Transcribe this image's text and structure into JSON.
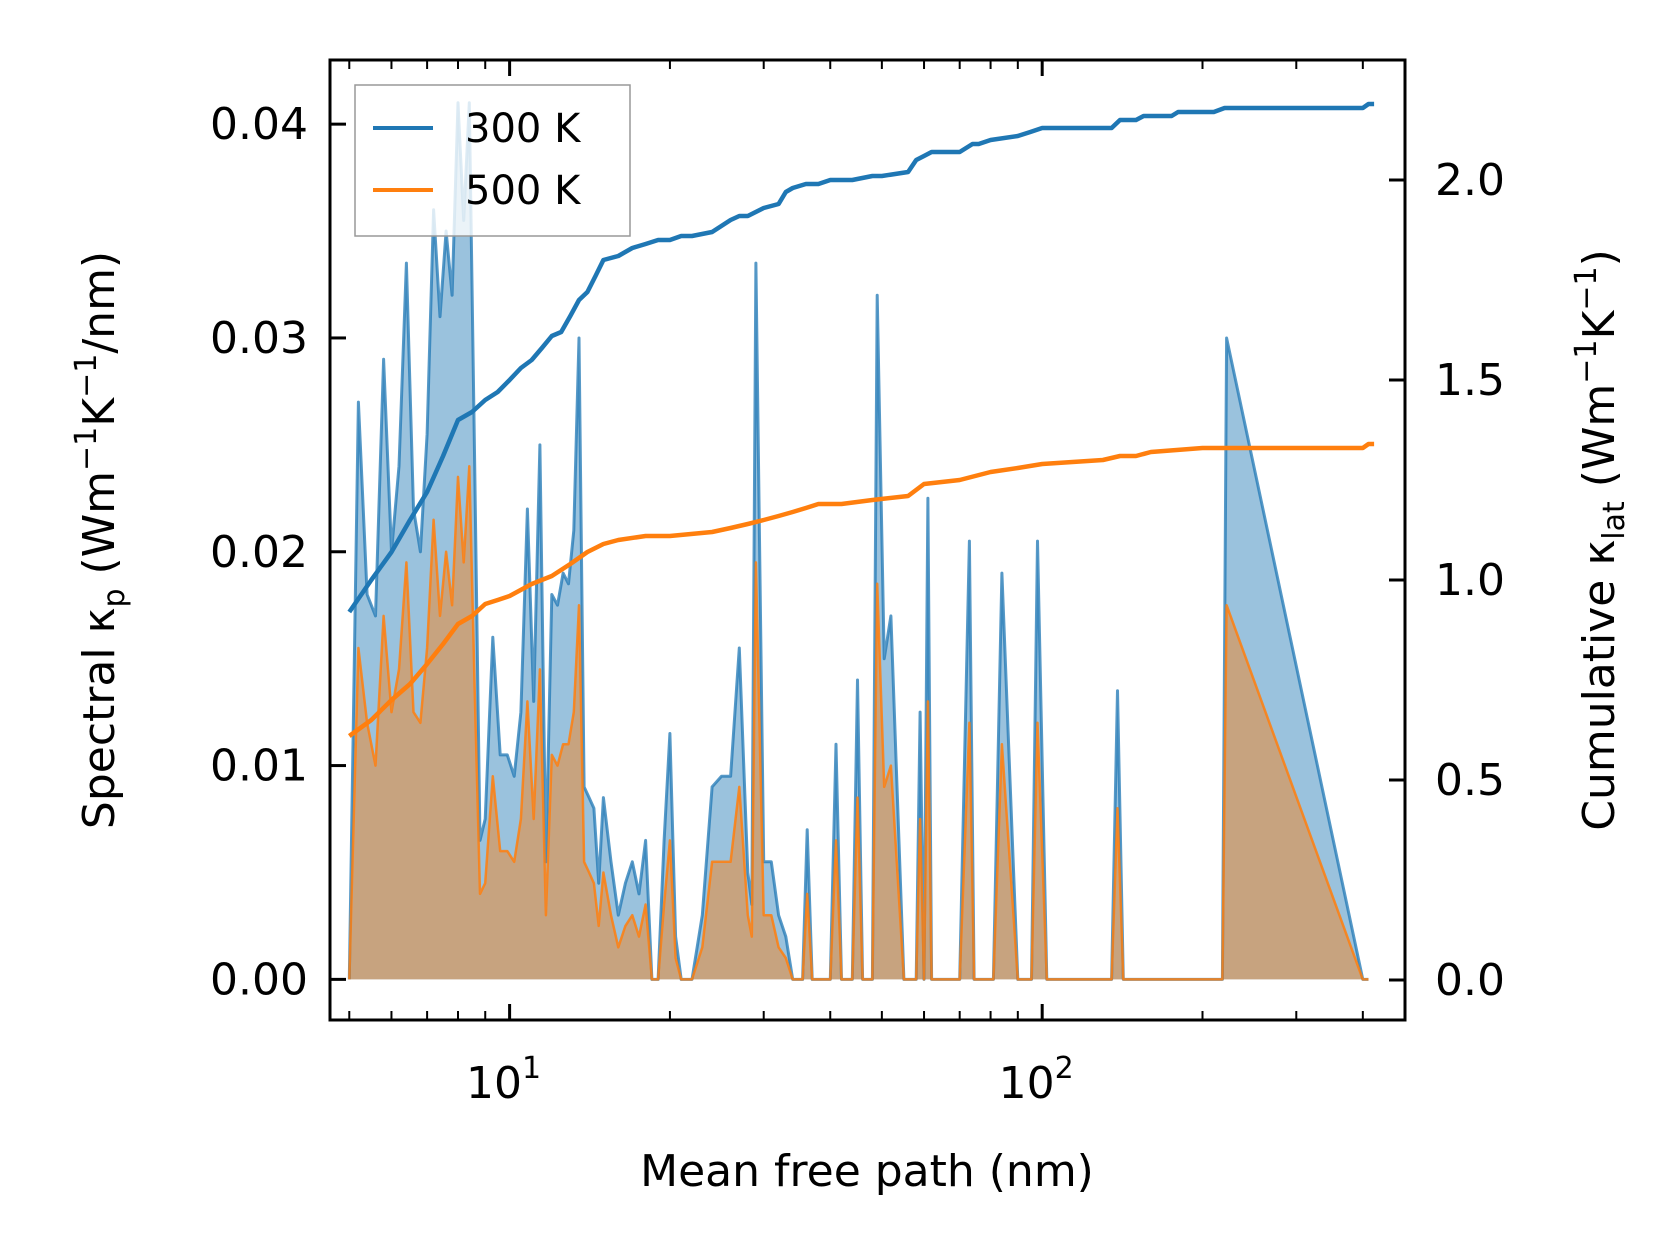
{
  "chart_data": {
    "type": "line",
    "xscale": "log",
    "xlabel": "Mean free path (nm)",
    "ylabel_left": {
      "main": "Spectral κ",
      "sub": "p",
      "units": "Wm",
      "exp1": "−1",
      "k": "K",
      "exp2": "−1",
      "tail": "/nm)"
    },
    "ylabel_right": {
      "main": "Cumulative κ",
      "sub": "lat",
      "units": "Wm",
      "exp1": "−1",
      "k": "K",
      "exp2": "−1",
      "tail": ")"
    },
    "xlim": [
      4.6,
      480
    ],
    "ylim_left": [
      -0.0019,
      0.043
    ],
    "ylim_right": [
      -0.1,
      2.3
    ],
    "xticks": [
      {
        "value": 10,
        "base": "10",
        "exp": "1"
      },
      {
        "value": 100,
        "base": "10",
        "exp": "2"
      }
    ],
    "yticks_left": [
      {
        "value": 0.0,
        "label": "0.00"
      },
      {
        "value": 0.01,
        "label": "0.01"
      },
      {
        "value": 0.02,
        "label": "0.02"
      },
      {
        "value": 0.03,
        "label": "0.03"
      },
      {
        "value": 0.04,
        "label": "0.04"
      }
    ],
    "yticks_right": [
      {
        "value": 0.0,
        "label": "0.0"
      },
      {
        "value": 0.5,
        "label": "0.5"
      },
      {
        "value": 1.0,
        "label": "1.0"
      },
      {
        "value": 1.5,
        "label": "1.5"
      },
      {
        "value": 2.0,
        "label": "2.0"
      }
    ],
    "legend": {
      "position": "upper-left",
      "entries": [
        {
          "label": "300 K",
          "color": "#1f77b4"
        },
        {
          "label": "500 K",
          "color": "#ff7f0e"
        }
      ]
    },
    "colors": {
      "s300": "#1f77b4",
      "s500": "#ff7f0e",
      "fill300": "#1f77b4",
      "fill500": "#ff7f0e"
    },
    "spectral": {
      "x": [
        5.0,
        5.2,
        5.4,
        5.6,
        5.8,
        6.0,
        6.2,
        6.4,
        6.6,
        6.8,
        7.0,
        7.2,
        7.4,
        7.6,
        7.8,
        8.0,
        8.2,
        8.4,
        8.6,
        8.8,
        9.0,
        9.3,
        9.6,
        9.9,
        10.2,
        10.5,
        10.8,
        11.1,
        11.4,
        11.7,
        12.0,
        12.3,
        12.6,
        12.9,
        13.2,
        13.5,
        13.8,
        14.1,
        14.4,
        14.7,
        15.0,
        15.5,
        16.0,
        16.5,
        17.0,
        17.5,
        18.0,
        18.5,
        19.0,
        19.5,
        20.0,
        20.5,
        21.0,
        21.5,
        22.0,
        23.0,
        24.0,
        25.0,
        26.0,
        27.0,
        28.0,
        28.5,
        29.0,
        30.0,
        31.0,
        32.0,
        33.0,
        34.0,
        34.8,
        35.5,
        36.2,
        37.0,
        38.0,
        39.0,
        40.0,
        41.0,
        42.0,
        43.0,
        44.0,
        45.0,
        46.0,
        47.0,
        48.0,
        49.0,
        50.5,
        52.0,
        55.0,
        57.0,
        58.0,
        59.0,
        60.0,
        61.0,
        62.0,
        64.0,
        70.0,
        73.0,
        74.5,
        76.0,
        78.0,
        79.5,
        81.0,
        84.0,
        90.0,
        93.0,
        95.5,
        98.0,
        102.0,
        130.0,
        135.0,
        138.5,
        142.0,
        145.0,
        150.0,
        153.0,
        155.5,
        158.0,
        165.0,
        175.0,
        180.0,
        184.0,
        200.0,
        213.0,
        218.0,
        222.0,
        400.0,
        410.0,
        415.0,
        420.0
      ],
      "v300": [
        0.0,
        0.027,
        0.018,
        0.017,
        0.029,
        0.02,
        0.024,
        0.0335,
        0.022,
        0.02,
        0.0255,
        0.036,
        0.031,
        0.035,
        0.032,
        0.041,
        0.0355,
        0.041,
        0.024,
        0.0065,
        0.0075,
        0.016,
        0.0105,
        0.0105,
        0.0095,
        0.0125,
        0.022,
        0.013,
        0.025,
        0.0055,
        0.018,
        0.0175,
        0.019,
        0.0185,
        0.021,
        0.03,
        0.009,
        0.0085,
        0.008,
        0.0045,
        0.0085,
        0.0055,
        0.003,
        0.0045,
        0.0055,
        0.004,
        0.0065,
        0.0,
        0.0,
        0.0065,
        0.0115,
        0.002,
        0.0,
        0.0,
        0.0,
        0.003,
        0.009,
        0.0095,
        0.0095,
        0.0155,
        0.005,
        0.0035,
        0.0335,
        0.0055,
        0.0055,
        0.003,
        0.002,
        0.0,
        0.0,
        0.0,
        0.007,
        0.0,
        0.0,
        0.0,
        0.0,
        0.011,
        0.0,
        0.0,
        0.0,
        0.014,
        0.0,
        0.0,
        0.0,
        0.032,
        0.015,
        0.017,
        0.0,
        0.0,
        0.0,
        0.0125,
        0.0,
        0.0225,
        0.0,
        0.0,
        0.0,
        0.0205,
        0.0,
        0.0,
        0.0,
        0.0,
        0.0,
        0.019,
        0.0,
        0.0,
        0.0,
        0.0205,
        0.0,
        0.0,
        0.0,
        0.0135,
        0.0,
        0.0,
        0.0,
        0.0,
        0.0,
        0.0,
        0.0,
        0.0,
        0.0,
        0.0,
        0.0,
        0.0,
        0.0,
        0.03,
        0.0,
        0.0
      ],
      "v500": [
        0.0,
        0.0155,
        0.012,
        0.01,
        0.017,
        0.0125,
        0.0145,
        0.0195,
        0.0125,
        0.012,
        0.0155,
        0.0215,
        0.017,
        0.02,
        0.0175,
        0.0235,
        0.0195,
        0.024,
        0.0135,
        0.004,
        0.0045,
        0.0095,
        0.006,
        0.006,
        0.0055,
        0.0075,
        0.013,
        0.0075,
        0.0145,
        0.003,
        0.0105,
        0.01,
        0.011,
        0.011,
        0.0125,
        0.0175,
        0.0055,
        0.005,
        0.0045,
        0.0025,
        0.005,
        0.003,
        0.0015,
        0.0025,
        0.003,
        0.002,
        0.0035,
        0.0,
        0.0,
        0.0035,
        0.0065,
        0.001,
        0.0,
        0.0,
        0.0,
        0.0015,
        0.0055,
        0.0055,
        0.0055,
        0.009,
        0.003,
        0.002,
        0.0195,
        0.003,
        0.003,
        0.0015,
        0.001,
        0.0,
        0.0,
        0.0,
        0.004,
        0.0,
        0.0,
        0.0,
        0.0,
        0.0065,
        0.0,
        0.0,
        0.0,
        0.0085,
        0.0,
        0.0,
        0.0,
        0.0185,
        0.009,
        0.01,
        0.0,
        0.0,
        0.0,
        0.0075,
        0.0,
        0.013,
        0.0,
        0.0,
        0.0,
        0.012,
        0.0,
        0.0,
        0.0,
        0.0,
        0.0,
        0.011,
        0.0,
        0.0,
        0.0,
        0.012,
        0.0,
        0.0,
        0.0,
        0.008,
        0.0,
        0.0,
        0.0,
        0.0,
        0.0,
        0.0,
        0.0,
        0.0,
        0.0,
        0.0,
        0.0,
        0.0,
        0.0,
        0.0175,
        0.0,
        0.0
      ]
    },
    "cumulative": {
      "x300": [
        5.0,
        5.5,
        6.0,
        6.5,
        7.0,
        7.5,
        8.0,
        8.5,
        9.0,
        9.5,
        10.0,
        10.5,
        11.0,
        11.5,
        12.0,
        12.5,
        13.0,
        13.5,
        14.0,
        14.5,
        15.0,
        16.0,
        17.0,
        18.0,
        19.0,
        20.0,
        21.0,
        22.0,
        24.0,
        26.0,
        27.0,
        28.0,
        30.0,
        32.0,
        33.0,
        34.0,
        36.0,
        38.0,
        40.0,
        44.0,
        48.0,
        50.0,
        56.0,
        58.0,
        60.0,
        62.0,
        70.0,
        74.0,
        76.0,
        80.0,
        90.0,
        95.0,
        100.0,
        120.0,
        135.0,
        140.0,
        150.0,
        155.0,
        175.0,
        180.0,
        210.0,
        220.0,
        400.0,
        410.0,
        420.0
      ],
      "y300": [
        0.92,
        1.0,
        1.07,
        1.15,
        1.22,
        1.31,
        1.4,
        1.42,
        1.45,
        1.47,
        1.5,
        1.53,
        1.55,
        1.58,
        1.61,
        1.62,
        1.66,
        1.7,
        1.72,
        1.76,
        1.8,
        1.81,
        1.83,
        1.84,
        1.85,
        1.85,
        1.86,
        1.86,
        1.87,
        1.9,
        1.91,
        1.91,
        1.93,
        1.94,
        1.97,
        1.98,
        1.99,
        1.99,
        2.0,
        2.0,
        2.01,
        2.01,
        2.02,
        2.05,
        2.06,
        2.07,
        2.07,
        2.09,
        2.09,
        2.1,
        2.11,
        2.12,
        2.13,
        2.13,
        2.13,
        2.15,
        2.15,
        2.16,
        2.16,
        2.17,
        2.17,
        2.18,
        2.18,
        2.19,
        2.19
      ],
      "x500": [
        5.0,
        5.5,
        6.0,
        6.5,
        7.0,
        7.5,
        8.0,
        8.5,
        9.0,
        9.5,
        10.0,
        11.0,
        12.0,
        13.0,
        14.0,
        15.0,
        16.0,
        18.0,
        20.0,
        24.0,
        26.0,
        28.0,
        30.0,
        32.0,
        34.0,
        36.0,
        38.0,
        42.0,
        48.0,
        56.0,
        60.0,
        70.0,
        80.0,
        90.0,
        100.0,
        130.0,
        140.0,
        150.0,
        160.0,
        200.0,
        220.0,
        400.0,
        410.0,
        420.0
      ],
      "y500": [
        0.61,
        0.65,
        0.7,
        0.74,
        0.79,
        0.84,
        0.89,
        0.91,
        0.94,
        0.95,
        0.96,
        0.99,
        1.01,
        1.04,
        1.07,
        1.09,
        1.1,
        1.11,
        1.11,
        1.12,
        1.13,
        1.14,
        1.15,
        1.16,
        1.17,
        1.18,
        1.19,
        1.19,
        1.2,
        1.21,
        1.24,
        1.25,
        1.27,
        1.28,
        1.29,
        1.3,
        1.31,
        1.31,
        1.32,
        1.33,
        1.33,
        1.33,
        1.34,
        1.34
      ]
    }
  }
}
